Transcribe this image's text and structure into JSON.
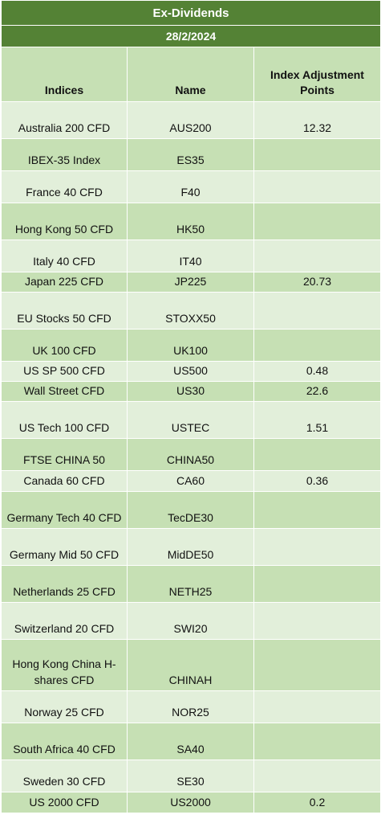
{
  "title": "Ex-Dividends",
  "date": "28/2/2024",
  "headers": {
    "indices": "Indices",
    "name": "Name",
    "points": "Index Adjustment Points"
  },
  "rows": [
    {
      "index": "Australia 200 CFD",
      "name": "AUS200",
      "points": "12.32"
    },
    {
      "index": "IBEX-35 Index",
      "name": "ES35",
      "points": ""
    },
    {
      "index": "France 40 CFD",
      "name": "F40",
      "points": ""
    },
    {
      "index": "Hong Kong 50 CFD",
      "name": "HK50",
      "points": ""
    },
    {
      "index": "Italy 40 CFD",
      "name": "IT40",
      "points": ""
    },
    {
      "index": "Japan 225 CFD",
      "name": "JP225",
      "points": "20.73"
    },
    {
      "index": "EU Stocks 50 CFD",
      "name": "STOXX50",
      "points": ""
    },
    {
      "index": "UK 100 CFD",
      "name": "UK100",
      "points": ""
    },
    {
      "index": "US SP 500 CFD",
      "name": "US500",
      "points": "0.48"
    },
    {
      "index": "Wall Street CFD",
      "name": "US30",
      "points": "22.6"
    },
    {
      "index": "US Tech 100 CFD",
      "name": "USTEC",
      "points": "1.51"
    },
    {
      "index": "FTSE CHINA 50",
      "name": "CHINA50",
      "points": ""
    },
    {
      "index": "Canada 60 CFD",
      "name": "CA60",
      "points": "0.36"
    },
    {
      "index": "Germany Tech 40 CFD",
      "name": "TecDE30",
      "points": ""
    },
    {
      "index": "Germany Mid 50 CFD",
      "name": "MidDE50",
      "points": ""
    },
    {
      "index": "Netherlands 25 CFD",
      "name": "NETH25",
      "points": ""
    },
    {
      "index": "Switzerland 20 CFD",
      "name": "SWI20",
      "points": ""
    },
    {
      "index": "Hong Kong China H-shares CFD",
      "name": "CHINAH",
      "points": ""
    },
    {
      "index": "Norway 25 CFD",
      "name": "NOR25",
      "points": ""
    },
    {
      "index": "South Africa 40 CFD",
      "name": "SA40",
      "points": ""
    },
    {
      "index": "Sweden 30 CFD",
      "name": "SE30",
      "points": ""
    },
    {
      "index": "US 2000 CFD",
      "name": "US2000",
      "points": "0.2"
    }
  ],
  "colors": {
    "title_bg": "#548235",
    "title_text": "#ffffff",
    "header_bg": "#c6e0b4",
    "row_dark": "#c6e0b4",
    "row_light": "#e2efda"
  }
}
